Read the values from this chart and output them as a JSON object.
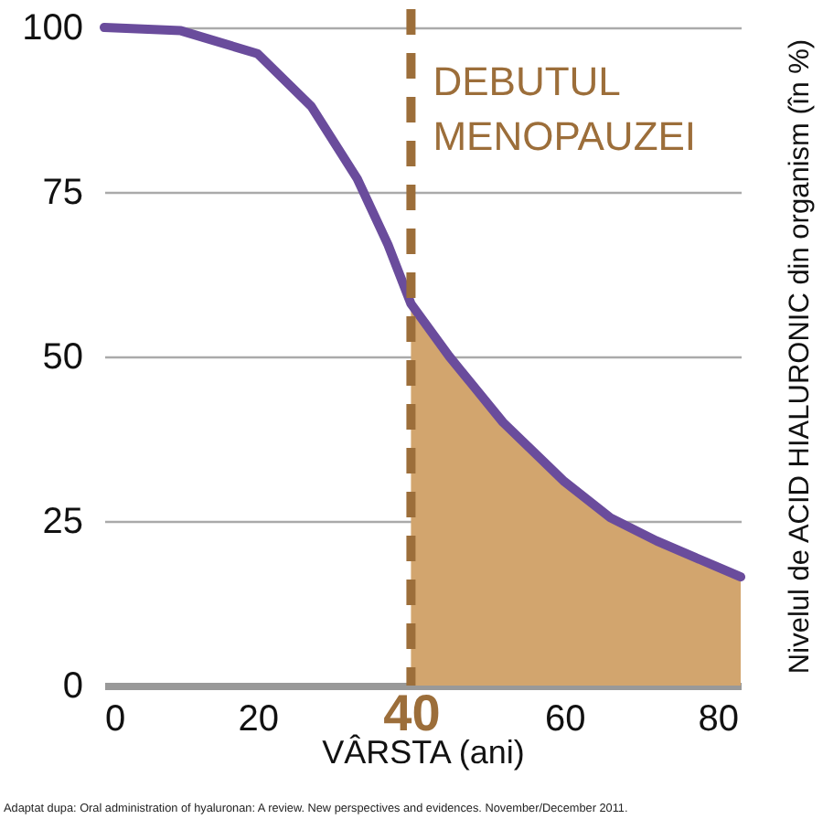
{
  "chart_data": {
    "type": "line",
    "xlabel": "VÂRSTA (ani)",
    "ylabel": "Nivelul de ACID HIALURONIC din organism (în %)",
    "annotations": [
      "Adaptat dupa: Oral administration of hyaluronan: A review. New perspectives and evidences. November/December 2011."
    ],
    "series": [
      {
        "type": "area",
        "color": "#d2a56e",
        "x": [
          40,
          45,
          52,
          60,
          66,
          72,
          80,
          83
        ],
        "values": [
          58,
          50,
          40,
          31,
          25.5,
          22,
          18,
          16.5
        ]
      },
      {
        "type": "line",
        "color": "#6a4c9c",
        "line_style": "solid",
        "x": [
          0,
          10,
          20,
          27,
          33,
          37,
          40,
          45,
          52,
          60,
          66,
          72,
          80,
          83
        ],
        "values": [
          100,
          99.5,
          96,
          88,
          77,
          67,
          58,
          50,
          40,
          31,
          25.5,
          22,
          18,
          16.5
        ]
      }
    ],
    "xlim": [
      0,
      83
    ],
    "xticks": [
      0,
      20,
      40,
      60,
      80
    ],
    "ylim": [
      0,
      100
    ],
    "yticks": [
      0,
      25,
      50,
      75,
      100
    ],
    "grid": "y",
    "ref_lines": [
      {
        "axis": "x",
        "value": 40,
        "label": "DEBUTUL MENOPAUZEI",
        "color": "#9c6e3a",
        "line_style": "dashed"
      }
    ]
  }
}
